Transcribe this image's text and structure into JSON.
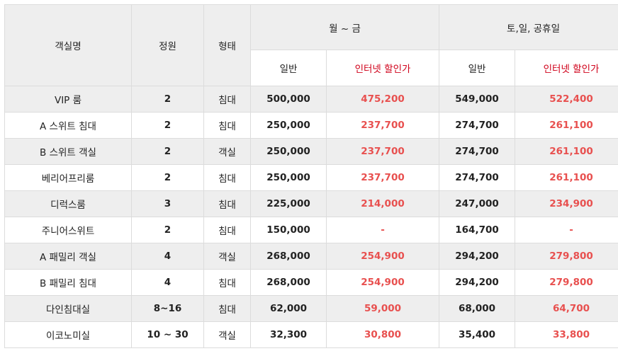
{
  "header": {
    "room_name": "객실명",
    "capacity": "정원",
    "type": "형태",
    "weekday": "월 ~ 금",
    "weekend": "토,일, 공휴일",
    "regular": "일반",
    "internet": "인터넷 할인가"
  },
  "rows": [
    {
      "name": "VIP 룸",
      "capacity": "2",
      "type": "침대",
      "wk_reg": "500,000",
      "wk_net": "475,200",
      "we_reg": "549,000",
      "we_net": "522,400"
    },
    {
      "name": "A 스위트 침대",
      "capacity": "2",
      "type": "침대",
      "wk_reg": "250,000",
      "wk_net": "237,700",
      "we_reg": "274,700",
      "we_net": "261,100"
    },
    {
      "name": "B 스위트 객실",
      "capacity": "2",
      "type": "객실",
      "wk_reg": "250,000",
      "wk_net": "237,700",
      "we_reg": "274,700",
      "we_net": "261,100"
    },
    {
      "name": "베리어프리룸",
      "capacity": "2",
      "type": "침대",
      "wk_reg": "250,000",
      "wk_net": "237,700",
      "we_reg": "274,700",
      "we_net": "261,100"
    },
    {
      "name": "디럭스룸",
      "capacity": "3",
      "type": "침대",
      "wk_reg": "225,000",
      "wk_net": "214,000",
      "we_reg": "247,000",
      "we_net": "234,900"
    },
    {
      "name": "주니어스위트",
      "capacity": "2",
      "type": "침대",
      "wk_reg": "150,000",
      "wk_net": "-",
      "we_reg": "164,700",
      "we_net": "-"
    },
    {
      "name": "A 패밀리 객실",
      "capacity": "4",
      "type": "객실",
      "wk_reg": "268,000",
      "wk_net": "254,900",
      "we_reg": "294,200",
      "we_net": "279,800"
    },
    {
      "name": "B 패밀리 침대",
      "capacity": "4",
      "type": "침대",
      "wk_reg": "268,000",
      "wk_net": "254,900",
      "we_reg": "294,200",
      "we_net": "279,800"
    },
    {
      "name": "다인침대실",
      "capacity": "8~16",
      "type": "침대",
      "wk_reg": "62,000",
      "wk_net": "59,000",
      "we_reg": "68,000",
      "we_net": "64,700"
    },
    {
      "name": "이코노미실",
      "capacity": "10 ~ 30",
      "type": "객실",
      "wk_reg": "32,300",
      "wk_net": "30,800",
      "we_reg": "35,400",
      "we_net": "33,800"
    }
  ],
  "colors": {
    "header_bg": "#eeeeee",
    "border": "#dcdcdc",
    "internet_header": "#d0021b",
    "internet_price": "#e8504f"
  }
}
